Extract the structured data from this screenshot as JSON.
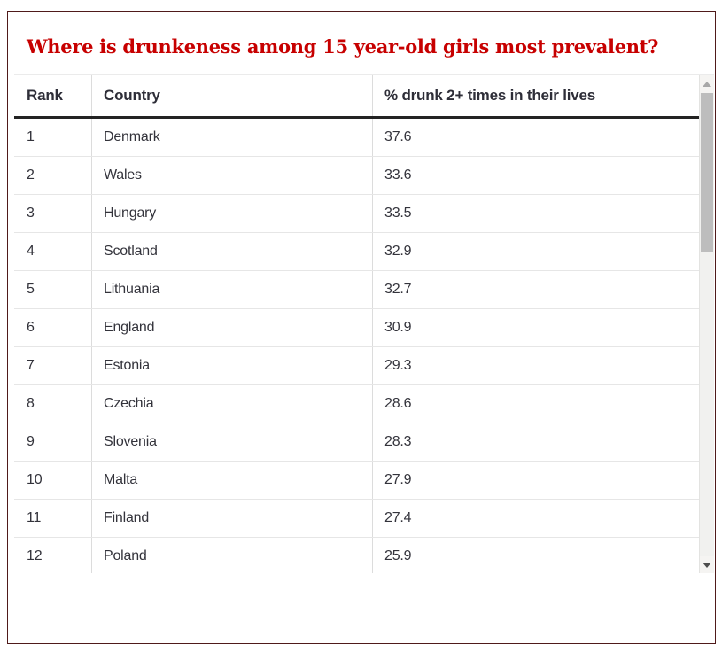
{
  "title": "Where is drunkeness among 15 year-old girls most prevalent?",
  "table": {
    "columns": [
      "Rank",
      "Country",
      "% drunk 2+ times in their lives"
    ],
    "rows": [
      {
        "rank": "1",
        "country": "Denmark",
        "value": "37.6"
      },
      {
        "rank": "2",
        "country": "Wales",
        "value": "33.6"
      },
      {
        "rank": "3",
        "country": "Hungary",
        "value": "33.5"
      },
      {
        "rank": "4",
        "country": "Scotland",
        "value": "32.9"
      },
      {
        "rank": "5",
        "country": "Lithuania",
        "value": "32.7"
      },
      {
        "rank": "6",
        "country": "England",
        "value": "30.9"
      },
      {
        "rank": "7",
        "country": "Estonia",
        "value": "29.3"
      },
      {
        "rank": "8",
        "country": "Czechia",
        "value": "28.6"
      },
      {
        "rank": "9",
        "country": "Slovenia",
        "value": "28.3"
      },
      {
        "rank": "10",
        "country": "Malta",
        "value": "27.9"
      },
      {
        "rank": "11",
        "country": "Finland",
        "value": "27.4"
      },
      {
        "rank": "12",
        "country": "Poland",
        "value": "25.9"
      }
    ]
  },
  "chart_data": {
    "type": "table",
    "title": "Where is drunkeness among 15 year-old girls most prevalent?",
    "columns": [
      "Rank",
      "Country",
      "% drunk 2+ times in their lives"
    ],
    "categories": [
      "Denmark",
      "Wales",
      "Hungary",
      "Scotland",
      "Lithuania",
      "England",
      "Estonia",
      "Czechia",
      "Slovenia",
      "Malta",
      "Finland",
      "Poland"
    ],
    "values": [
      37.6,
      33.6,
      33.5,
      32.9,
      32.7,
      30.9,
      29.3,
      28.6,
      28.3,
      27.9,
      27.4,
      25.9
    ],
    "layout": "scrollable ranked table, 12 of more rows visible, vertical scrollbar at right"
  },
  "colors": {
    "title_red": "#c70000",
    "frame_border": "#4f1a1a",
    "header_text": "#2e2e38",
    "cell_text": "#33333b",
    "header_rule": "#232323",
    "row_rule": "#e6e6e6",
    "scroll_thumb": "#bdbdbd",
    "scroll_track": "#f1f1ef"
  },
  "icons": {
    "scroll_up": "triangle-up",
    "scroll_down": "triangle-down"
  }
}
